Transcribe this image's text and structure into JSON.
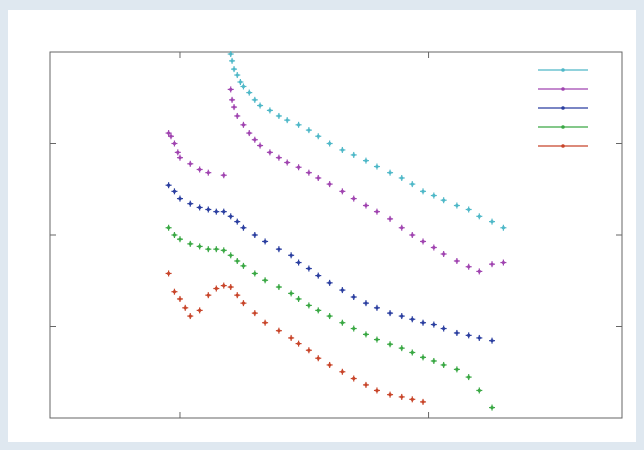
{
  "chart_data": {
    "type": "scatter",
    "title": "",
    "xlabel": "",
    "ylabel": "",
    "xscale": "log",
    "yscale": "log",
    "xlim": [
      30,
      6000
    ],
    "ylim": [
      0.1,
      1000
    ],
    "grid": false,
    "legend_position": "top-right",
    "y_ticks": [
      0.1,
      1,
      10,
      100,
      1000
    ],
    "x_ticks": [
      100,
      1000
    ],
    "series": [
      {
        "color": "#4fb8c8",
        "points": [
          [
            160,
            950
          ],
          [
            162,
            800
          ],
          [
            165,
            650
          ],
          [
            170,
            560
          ],
          [
            175,
            470
          ],
          [
            180,
            420
          ],
          [
            190,
            360
          ],
          [
            200,
            300
          ],
          [
            210,
            260
          ],
          [
            230,
            230
          ],
          [
            250,
            200
          ],
          [
            270,
            180
          ],
          [
            300,
            160
          ],
          [
            330,
            140
          ],
          [
            360,
            120
          ],
          [
            400,
            100
          ],
          [
            450,
            85
          ],
          [
            500,
            75
          ],
          [
            560,
            65
          ],
          [
            620,
            56
          ],
          [
            700,
            48
          ],
          [
            780,
            42
          ],
          [
            860,
            36
          ],
          [
            950,
            30
          ],
          [
            1050,
            27
          ],
          [
            1150,
            24
          ],
          [
            1300,
            21
          ],
          [
            1450,
            19
          ],
          [
            1600,
            16
          ],
          [
            1800,
            14
          ],
          [
            2000,
            12
          ]
        ]
      },
      {
        "color": "#a044b0",
        "points": [
          [
            90,
            130
          ],
          [
            92,
            120
          ],
          [
            95,
            100
          ],
          [
            98,
            80
          ],
          [
            100,
            70
          ],
          [
            110,
            60
          ],
          [
            120,
            52
          ],
          [
            130,
            48
          ],
          [
            150,
            45
          ],
          [
            160,
            390
          ],
          [
            162,
            300
          ],
          [
            165,
            250
          ],
          [
            170,
            200
          ],
          [
            180,
            160
          ],
          [
            190,
            130
          ],
          [
            200,
            110
          ],
          [
            210,
            95
          ],
          [
            230,
            80
          ],
          [
            250,
            70
          ],
          [
            270,
            62
          ],
          [
            300,
            55
          ],
          [
            330,
            48
          ],
          [
            360,
            42
          ],
          [
            400,
            36
          ],
          [
            450,
            30
          ],
          [
            500,
            25
          ],
          [
            560,
            21
          ],
          [
            620,
            18
          ],
          [
            700,
            15
          ],
          [
            780,
            12
          ],
          [
            860,
            10
          ],
          [
            950,
            8.5
          ],
          [
            1050,
            7.3
          ],
          [
            1150,
            6.2
          ],
          [
            1300,
            5.2
          ],
          [
            1450,
            4.5
          ],
          [
            1600,
            4
          ],
          [
            1800,
            4.8
          ],
          [
            2000,
            5
          ]
        ]
      },
      {
        "color": "#2b3fa0",
        "points": [
          [
            90,
            35
          ],
          [
            95,
            30
          ],
          [
            100,
            25
          ],
          [
            110,
            22
          ],
          [
            120,
            20
          ],
          [
            130,
            19
          ],
          [
            140,
            18
          ],
          [
            150,
            18
          ],
          [
            160,
            16
          ],
          [
            170,
            14
          ],
          [
            180,
            12
          ],
          [
            200,
            10
          ],
          [
            220,
            8.5
          ],
          [
            250,
            7
          ],
          [
            280,
            6
          ],
          [
            300,
            5
          ],
          [
            330,
            4.3
          ],
          [
            360,
            3.6
          ],
          [
            400,
            3
          ],
          [
            450,
            2.5
          ],
          [
            500,
            2.1
          ],
          [
            560,
            1.8
          ],
          [
            620,
            1.6
          ],
          [
            700,
            1.4
          ],
          [
            780,
            1.3
          ],
          [
            860,
            1.2
          ],
          [
            950,
            1.1
          ],
          [
            1050,
            1.05
          ],
          [
            1150,
            0.95
          ],
          [
            1300,
            0.85
          ],
          [
            1450,
            0.8
          ],
          [
            1600,
            0.75
          ],
          [
            1800,
            0.7
          ]
        ]
      },
      {
        "color": "#3aa844",
        "points": [
          [
            90,
            12
          ],
          [
            95,
            10
          ],
          [
            100,
            9
          ],
          [
            110,
            8
          ],
          [
            120,
            7.5
          ],
          [
            130,
            7
          ],
          [
            140,
            7
          ],
          [
            150,
            6.8
          ],
          [
            160,
            6
          ],
          [
            170,
            5.2
          ],
          [
            180,
            4.6
          ],
          [
            200,
            3.8
          ],
          [
            220,
            3.2
          ],
          [
            250,
            2.7
          ],
          [
            280,
            2.3
          ],
          [
            300,
            2
          ],
          [
            330,
            1.7
          ],
          [
            360,
            1.5
          ],
          [
            400,
            1.3
          ],
          [
            450,
            1.1
          ],
          [
            500,
            0.95
          ],
          [
            560,
            0.82
          ],
          [
            620,
            0.72
          ],
          [
            700,
            0.64
          ],
          [
            780,
            0.58
          ],
          [
            860,
            0.52
          ],
          [
            950,
            0.46
          ],
          [
            1050,
            0.42
          ],
          [
            1150,
            0.38
          ],
          [
            1300,
            0.34
          ],
          [
            1450,
            0.28
          ],
          [
            1600,
            0.2
          ],
          [
            1800,
            0.13
          ]
        ]
      },
      {
        "color": "#c8452a",
        "points": [
          [
            90,
            3.8
          ],
          [
            95,
            2.4
          ],
          [
            100,
            2.0
          ],
          [
            105,
            1.6
          ],
          [
            110,
            1.3
          ],
          [
            120,
            1.5
          ],
          [
            130,
            2.2
          ],
          [
            140,
            2.6
          ],
          [
            150,
            2.8
          ],
          [
            160,
            2.7
          ],
          [
            170,
            2.2
          ],
          [
            180,
            1.8
          ],
          [
            200,
            1.4
          ],
          [
            220,
            1.1
          ],
          [
            250,
            0.9
          ],
          [
            280,
            0.75
          ],
          [
            300,
            0.65
          ],
          [
            330,
            0.55
          ],
          [
            360,
            0.45
          ],
          [
            400,
            0.38
          ],
          [
            450,
            0.32
          ],
          [
            500,
            0.27
          ],
          [
            560,
            0.23
          ],
          [
            620,
            0.2
          ],
          [
            700,
            0.18
          ],
          [
            780,
            0.17
          ],
          [
            860,
            0.16
          ],
          [
            950,
            0.15
          ]
        ]
      }
    ]
  }
}
